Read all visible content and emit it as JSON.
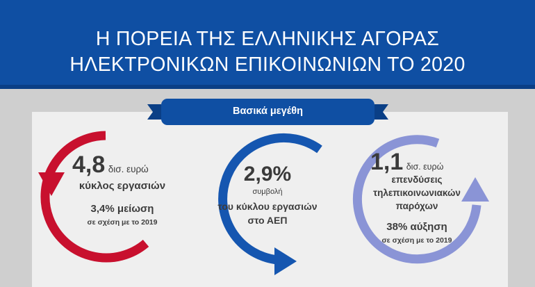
{
  "title": {
    "line1": "Η ΠΟΡΕΙΑ ΤΗΣ ΕΛΛΗΝΙΚΗΣ ΑΓΟΡΑΣ",
    "line2": "ΗΛΕΚΤΡΟΝΙΚΩΝ ΕΠΙΚΟΙΝΩΝΙΩΝ ΤΟ 2020"
  },
  "ribbon": {
    "label": "Βασικά μεγέθη"
  },
  "stats": [
    {
      "value": "4,8",
      "unit": "δισ. ευρώ",
      "label": "κύκλος εργασιών",
      "change": "3,4% μείωση",
      "compare": "σε σχέση με το 2019",
      "color": "#c8102e"
    },
    {
      "value": "2,9%",
      "line1": "συμβολή",
      "line2": "του κύκλου εργασιών",
      "line3": "στο ΑΕΠ",
      "color": "#1556b0"
    },
    {
      "value": "1,1",
      "unit": "δισ. ευρώ",
      "line1": "επενδύσεις",
      "line2": "τηλεπικοινωνιακών",
      "line3": "παρόχων",
      "change": "38% αύξηση",
      "compare": "σε σχέση με το 2019",
      "color": "#8a94d6"
    }
  ],
  "colors": {
    "header": "#0f4fa3",
    "panel": "#cfcfcf",
    "inner": "#efefef"
  }
}
